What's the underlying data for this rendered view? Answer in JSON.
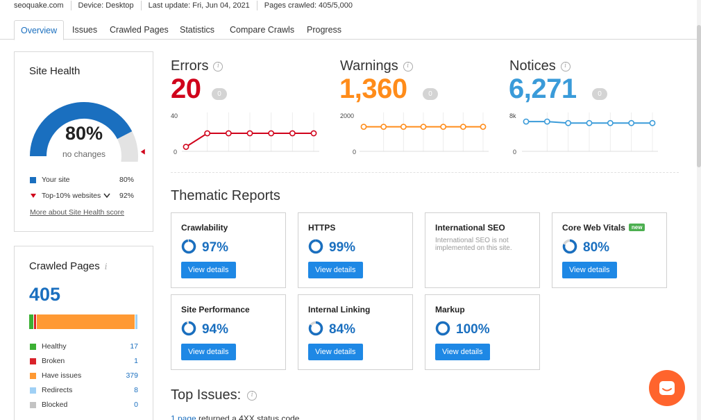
{
  "meta": {
    "domain": "seoquake.com",
    "device": "Device: Desktop",
    "last_update": "Last update: Fri, Jun 04, 2021",
    "pages_crawled": "Pages crawled: 405/5,000"
  },
  "tabs": [
    {
      "label": "Overview",
      "active": true
    },
    {
      "label": "Issues"
    },
    {
      "label": "Crawled Pages"
    },
    {
      "label": "Statistics"
    },
    {
      "label": "Compare Crawls"
    },
    {
      "label": "Progress"
    }
  ],
  "site_health": {
    "title": "Site Health",
    "score": "80%",
    "score_value": 80,
    "subtitle": "no changes",
    "top10_value": 92,
    "legend": [
      {
        "label": "Your site",
        "value": "80%",
        "color": "#1a6fbf"
      },
      {
        "label": "Top-10% websites",
        "value": "92%",
        "color": "#d0021b"
      }
    ],
    "link": "More about Site Health score"
  },
  "crawled_pages": {
    "title": "Crawled Pages",
    "total": "405",
    "legend": [
      {
        "label": "Healthy",
        "value": "17",
        "color": "#3cb034"
      },
      {
        "label": "Broken",
        "value": "1",
        "color": "#d9222a"
      },
      {
        "label": "Have issues",
        "value": "379",
        "color": "#ff9933"
      },
      {
        "label": "Redirects",
        "value": "8",
        "color": "#9fd0f5"
      },
      {
        "label": "Blocked",
        "value": "0",
        "color": "#c3c3c3"
      }
    ]
  },
  "metrics": {
    "errors": {
      "title": "Errors",
      "value": "20",
      "delta": "0",
      "color": "#d0021b",
      "ymax": "40",
      "ymin": "0",
      "points": [
        5,
        20,
        20,
        20,
        20,
        20,
        20
      ]
    },
    "warnings": {
      "title": "Warnings",
      "value": "1,360",
      "delta": "0",
      "color": "#ff8c1a",
      "ymax": "2000",
      "ymin": "0",
      "points": [
        1360,
        1360,
        1360,
        1360,
        1360,
        1360,
        1360
      ]
    },
    "notices": {
      "title": "Notices",
      "value": "6,271",
      "delta": "0",
      "color": "#3a9bd9",
      "ymax": "8k",
      "ymin": "0",
      "points": [
        6600,
        6600,
        6271,
        6271,
        6271,
        6271,
        6271
      ]
    }
  },
  "thematic": {
    "title": "Thematic Reports",
    "button_label": "View details",
    "reports": [
      {
        "title": "Crawlability",
        "pct": "97%",
        "value": 97
      },
      {
        "title": "HTTPS",
        "pct": "99%",
        "value": 99
      },
      {
        "title": "International SEO",
        "note": "International SEO is not implemented on this site."
      },
      {
        "title": "Core Web Vitals",
        "badge": "new",
        "pct": "80%",
        "value": 80
      },
      {
        "title": "Site Performance",
        "pct": "94%",
        "value": 94
      },
      {
        "title": "Internal Linking",
        "pct": "84%",
        "value": 84
      },
      {
        "title": "Markup",
        "pct": "100%",
        "value": 100
      }
    ]
  },
  "top_issues": {
    "title": "Top Issues:",
    "first_link": "1 page",
    "first_text": " returned a 4XX status code"
  }
}
